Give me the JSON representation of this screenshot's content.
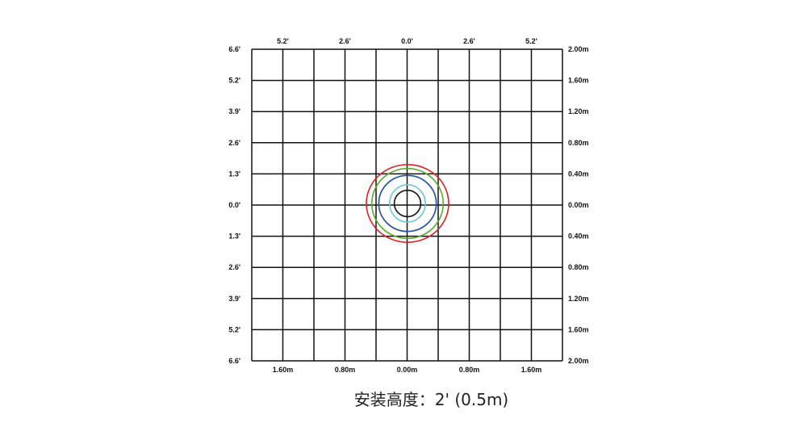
{
  "top_labels": [
    "5.2'",
    "2.6'",
    "0.0'",
    "2.6'",
    "5.2'"
  ],
  "bottom_labels": [
    "1.60m",
    "0.80m",
    "0.00m",
    "0.80m",
    "1.60m"
  ],
  "left_labels": [
    "6.6'",
    "5.2'",
    "3.9'",
    "2.6'",
    "1.3'",
    "0.0'",
    "1.3'",
    "2.6'",
    "3.9'",
    "5.2'",
    "6.6'"
  ],
  "right_labels": [
    "2.00m",
    "1.60m",
    "1.20m",
    "0.80m",
    "0.40m",
    "0.00m",
    "0.40m",
    "0.80m",
    "1.20m",
    "1.60m",
    "2.00m"
  ],
  "rings": [
    {
      "color": "#e02020",
      "rx_m": 0.53,
      "ry_m": 0.5
    },
    {
      "color": "#5aab2a",
      "rx_m": 0.46,
      "ry_m": 0.45
    },
    {
      "color": "#1f4fa8",
      "rx_m": 0.37,
      "ry_m": 0.36
    },
    {
      "color": "#6cc8d8",
      "rx_m": 0.23,
      "ry_m": 0.24
    },
    {
      "color": "#111111",
      "rx_m": 0.17,
      "ry_m": 0.17
    }
  ],
  "caption": "安装高度：2' (0.5m)"
}
